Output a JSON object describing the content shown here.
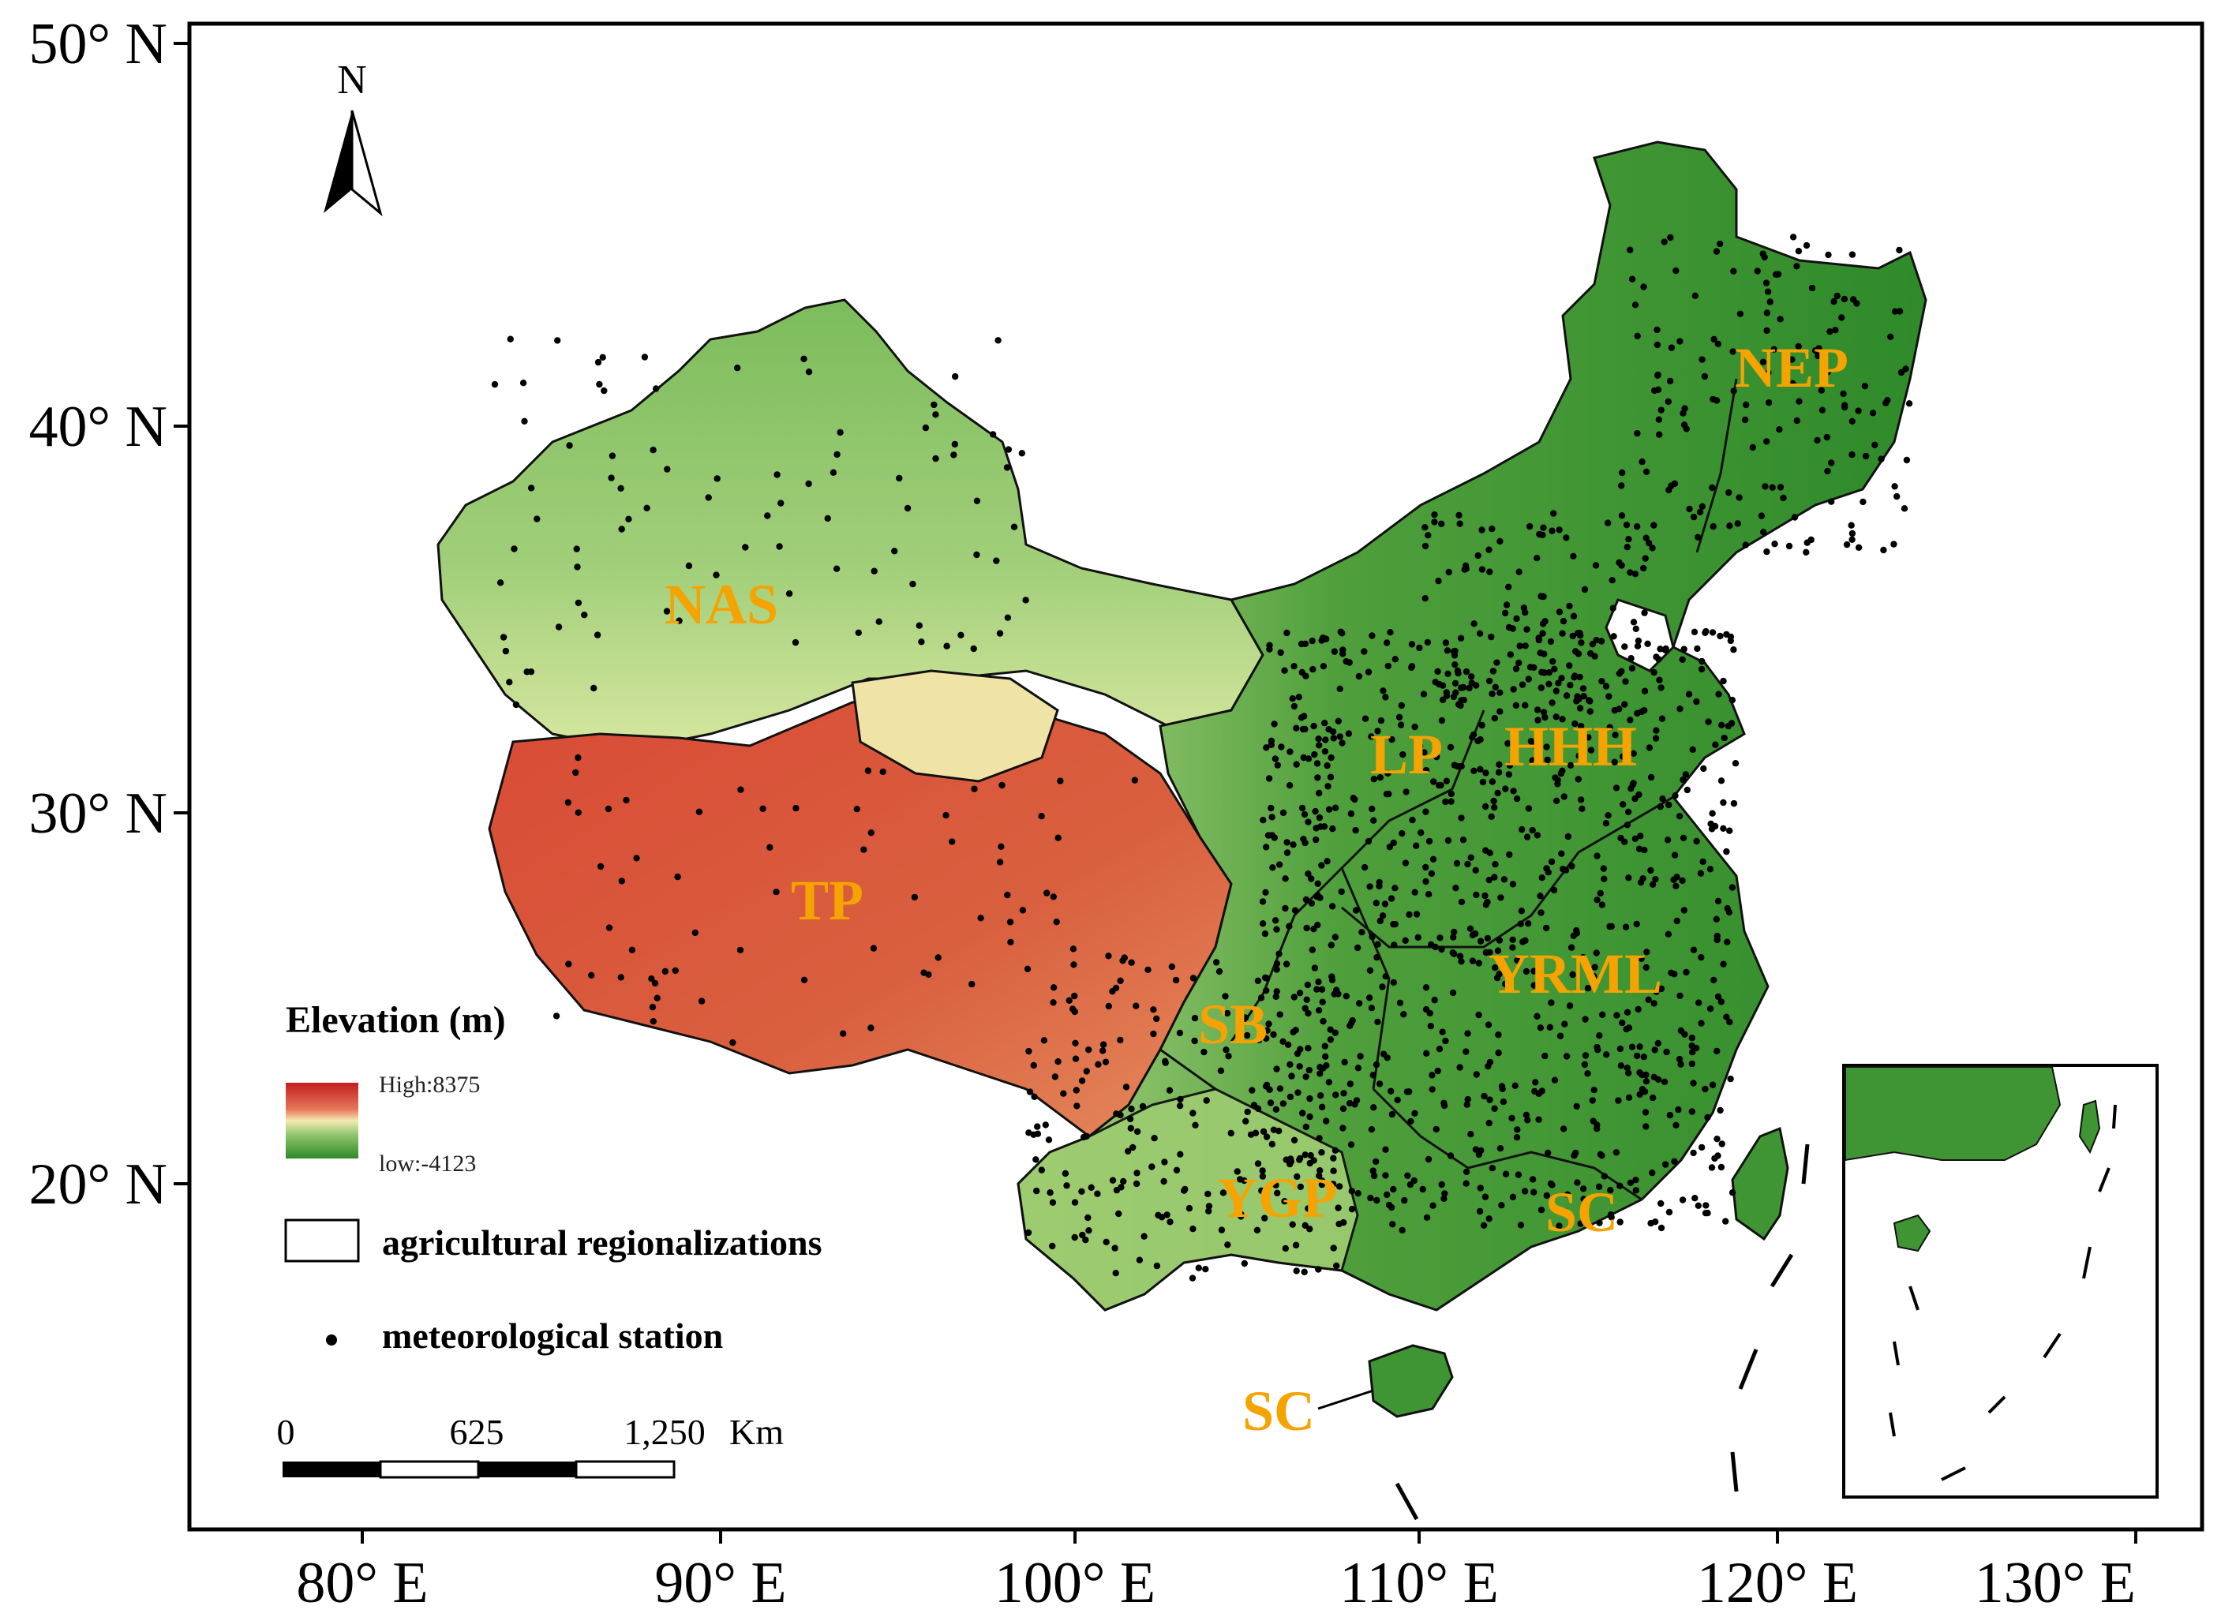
{
  "axes": {
    "latitude_labels": [
      "50° N",
      "40° N",
      "30° N",
      "20° N"
    ],
    "longitude_labels": [
      "80° E",
      "90° E",
      "100° E",
      "110° E",
      "120° E",
      "130° E"
    ]
  },
  "north_arrow": {
    "label": "N"
  },
  "regions": [
    {
      "code": "NAS"
    },
    {
      "code": "TP"
    },
    {
      "code": "LP"
    },
    {
      "code": "HHH"
    },
    {
      "code": "NEP"
    },
    {
      "code": "SB"
    },
    {
      "code": "YRML"
    },
    {
      "code": "YGP"
    },
    {
      "code": "SC"
    },
    {
      "code": "SC"
    }
  ],
  "legend": {
    "title": "Elevation (m)",
    "high_label": "High:8375",
    "low_label": "low:-4123",
    "items": [
      {
        "label": "agricultural regionalizations"
      },
      {
        "label": "meteorological station"
      }
    ]
  },
  "scale_bar": {
    "ticks": [
      "0",
      "625",
      "1,250"
    ],
    "unit": "Km"
  },
  "colors": {
    "high": "#c21e1e",
    "mid": "#f4e9b4",
    "low": "#2f8a2a",
    "label": "#f5a300"
  }
}
